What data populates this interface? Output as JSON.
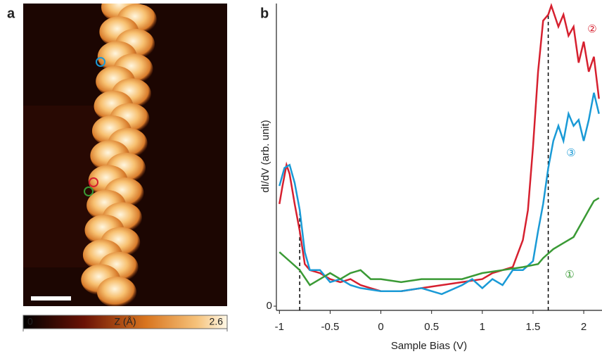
{
  "chart_data": [
    {
      "type": "image",
      "panel_label": "a",
      "colorbar": {
        "label": "Z (Å)",
        "lim": [
          0,
          2.6
        ],
        "ticks": [
          0,
          2.6
        ]
      }
    },
    {
      "type": "line",
      "panel_label": "b",
      "xlabel": "Sample Bias (V)",
      "ylabel": "dI/dV (arb. unit)",
      "xlim": [
        -1.03,
        2.18
      ],
      "ylim": [
        -0.014,
        1.0
      ],
      "xticks": [
        -1,
        -0.5,
        0,
        0.5,
        1,
        1.5,
        2
      ],
      "yticks": [
        0
      ],
      "vlines": [
        -0.8,
        1.65
      ],
      "series": [
        {
          "name": "②",
          "color": "#d6202f",
          "x": [
            -1,
            -0.97,
            -0.93,
            -0.9,
            -0.85,
            -0.8,
            -0.75,
            -0.7,
            -0.6,
            -0.5,
            -0.4,
            -0.3,
            -0.2,
            -0.1,
            0,
            0.2,
            0.4,
            0.6,
            0.8,
            1.0,
            1.1,
            1.2,
            1.3,
            1.4,
            1.45,
            1.5,
            1.55,
            1.6,
            1.65,
            1.68,
            1.75,
            1.8,
            1.85,
            1.9,
            1.95,
            2.0,
            2.05,
            2.1,
            2.15
          ],
          "values": [
            0.34,
            0.4,
            0.47,
            0.44,
            0.34,
            0.25,
            0.14,
            0.12,
            0.11,
            0.09,
            0.08,
            0.09,
            0.07,
            0.06,
            0.05,
            0.05,
            0.06,
            0.07,
            0.08,
            0.09,
            0.11,
            0.12,
            0.13,
            0.22,
            0.32,
            0.53,
            0.78,
            0.95,
            0.97,
            1.0,
            0.93,
            0.97,
            0.9,
            0.93,
            0.81,
            0.88,
            0.78,
            0.83,
            0.69
          ]
        },
        {
          "name": "③",
          "color": "#1a9ad6",
          "x": [
            -1,
            -0.95,
            -0.9,
            -0.85,
            -0.8,
            -0.75,
            -0.7,
            -0.6,
            -0.5,
            -0.4,
            -0.3,
            -0.2,
            0,
            0.2,
            0.4,
            0.6,
            0.8,
            0.9,
            1.0,
            1.1,
            1.2,
            1.3,
            1.4,
            1.5,
            1.55,
            1.6,
            1.65,
            1.7,
            1.75,
            1.8,
            1.85,
            1.9,
            1.95,
            2.0,
            2.05,
            2.1,
            2.15
          ],
          "values": [
            0.4,
            0.46,
            0.47,
            0.41,
            0.32,
            0.18,
            0.12,
            0.12,
            0.08,
            0.09,
            0.07,
            0.06,
            0.05,
            0.05,
            0.06,
            0.04,
            0.07,
            0.09,
            0.06,
            0.09,
            0.07,
            0.12,
            0.12,
            0.15,
            0.25,
            0.34,
            0.46,
            0.55,
            0.6,
            0.55,
            0.64,
            0.6,
            0.62,
            0.55,
            0.62,
            0.71,
            0.64
          ]
        },
        {
          "name": "①",
          "color": "#3a9a35",
          "x": [
            -1,
            -0.9,
            -0.8,
            -0.7,
            -0.6,
            -0.5,
            -0.4,
            -0.3,
            -0.2,
            -0.1,
            0,
            0.2,
            0.4,
            0.6,
            0.8,
            1.0,
            1.2,
            1.4,
            1.55,
            1.6,
            1.7,
            1.8,
            1.9,
            2.0,
            2.05,
            2.1,
            2.15
          ],
          "values": [
            0.18,
            0.15,
            0.12,
            0.07,
            0.09,
            0.11,
            0.09,
            0.11,
            0.12,
            0.09,
            0.09,
            0.08,
            0.09,
            0.09,
            0.09,
            0.11,
            0.12,
            0.13,
            0.14,
            0.16,
            0.19,
            0.21,
            0.23,
            0.29,
            0.32,
            0.35,
            0.36
          ]
        }
      ]
    }
  ]
}
